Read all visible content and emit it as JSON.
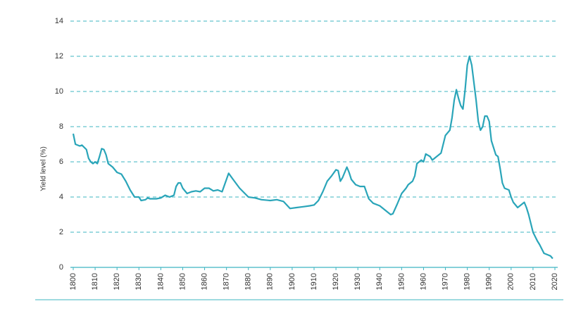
{
  "chart_data": {
    "type": "line",
    "ylabel": "Yield level (%)",
    "x": [
      1800,
      1801,
      1803,
      1804,
      1806,
      1807,
      1808,
      1809,
      1810,
      1811,
      1812,
      1813,
      1814,
      1815,
      1816,
      1818,
      1820,
      1822,
      1824,
      1826,
      1828,
      1830,
      1831,
      1833,
      1834,
      1835,
      1838,
      1840,
      1842,
      1844,
      1846,
      1847,
      1848,
      1849,
      1850,
      1852,
      1854,
      1856,
      1858,
      1860,
      1862,
      1864,
      1866,
      1868,
      1870,
      1871,
      1873,
      1876,
      1880,
      1883,
      1886,
      1890,
      1893,
      1896,
      1899,
      1902,
      1905,
      1908,
      1910,
      1912,
      1914,
      1916,
      1918,
      1920,
      1921,
      1922,
      1923,
      1925,
      1926,
      1927,
      1929,
      1931,
      1933,
      1935,
      1937,
      1940,
      1942,
      1945,
      1946,
      1948,
      1950,
      1952,
      1953,
      1955,
      1956,
      1957,
      1959,
      1960,
      1961,
      1963,
      1964,
      1966,
      1968,
      1970,
      1972,
      1973,
      1974,
      1975,
      1976,
      1977,
      1978,
      1979,
      1980,
      1981,
      1982,
      1983,
      1984,
      1985,
      1986,
      1987,
      1988,
      1989,
      1990,
      1991,
      1993,
      1994,
      1995,
      1996,
      1997,
      1999,
      2000,
      2001,
      2003,
      2005,
      2006,
      2007,
      2008,
      2009,
      2010,
      2012,
      2013,
      2015,
      2017,
      2018,
      2019
    ],
    "series": [
      {
        "name": "Yield",
        "color": "#2aa5b9",
        "values": [
          7.6,
          7.0,
          6.9,
          6.95,
          6.7,
          6.2,
          6.0,
          5.9,
          6.0,
          5.9,
          6.3,
          6.75,
          6.7,
          6.4,
          5.9,
          5.7,
          5.4,
          5.3,
          4.9,
          4.4,
          4.0,
          4.0,
          3.8,
          3.85,
          3.95,
          3.9,
          3.9,
          3.95,
          4.1,
          4.0,
          4.1,
          4.6,
          4.8,
          4.8,
          4.5,
          4.2,
          4.3,
          4.35,
          4.3,
          4.5,
          4.5,
          4.35,
          4.4,
          4.3,
          5.0,
          5.35,
          5.0,
          4.5,
          4.0,
          3.95,
          3.85,
          3.8,
          3.85,
          3.75,
          3.35,
          3.4,
          3.45,
          3.5,
          3.55,
          3.8,
          4.3,
          4.9,
          5.2,
          5.55,
          5.5,
          4.9,
          5.1,
          5.7,
          5.4,
          5.0,
          4.7,
          4.6,
          4.6,
          3.9,
          3.65,
          3.5,
          3.3,
          3.0,
          3.05,
          3.6,
          4.2,
          4.5,
          4.7,
          4.9,
          5.2,
          5.9,
          6.1,
          6.0,
          6.45,
          6.3,
          6.1,
          6.3,
          6.5,
          7.5,
          7.8,
          8.5,
          9.5,
          10.1,
          9.6,
          9.2,
          9.0,
          10.1,
          11.5,
          12.0,
          11.5,
          10.5,
          9.5,
          8.3,
          7.8,
          8.0,
          8.6,
          8.6,
          8.3,
          7.2,
          6.4,
          6.3,
          5.6,
          4.8,
          4.5,
          4.4,
          4.0,
          3.7,
          3.4,
          3.6,
          3.7,
          3.4,
          3.0,
          2.5,
          2.0,
          1.5,
          1.3,
          0.8,
          0.7,
          0.65,
          0.5
        ]
      }
    ],
    "xlim": [
      1800,
      2020
    ],
    "xticks": [
      1800,
      1810,
      1820,
      1830,
      1840,
      1850,
      1860,
      1870,
      1880,
      1890,
      1900,
      1910,
      1920,
      1930,
      1940,
      1950,
      1960,
      1970,
      1980,
      1990,
      2000,
      2010,
      2020
    ],
    "ylim": [
      0,
      14
    ],
    "yticks": [
      0,
      2,
      4,
      6,
      8,
      10,
      12,
      14
    ],
    "grid": true,
    "grid_color": "#3db4c2",
    "axis_color": "#3db4c2"
  }
}
